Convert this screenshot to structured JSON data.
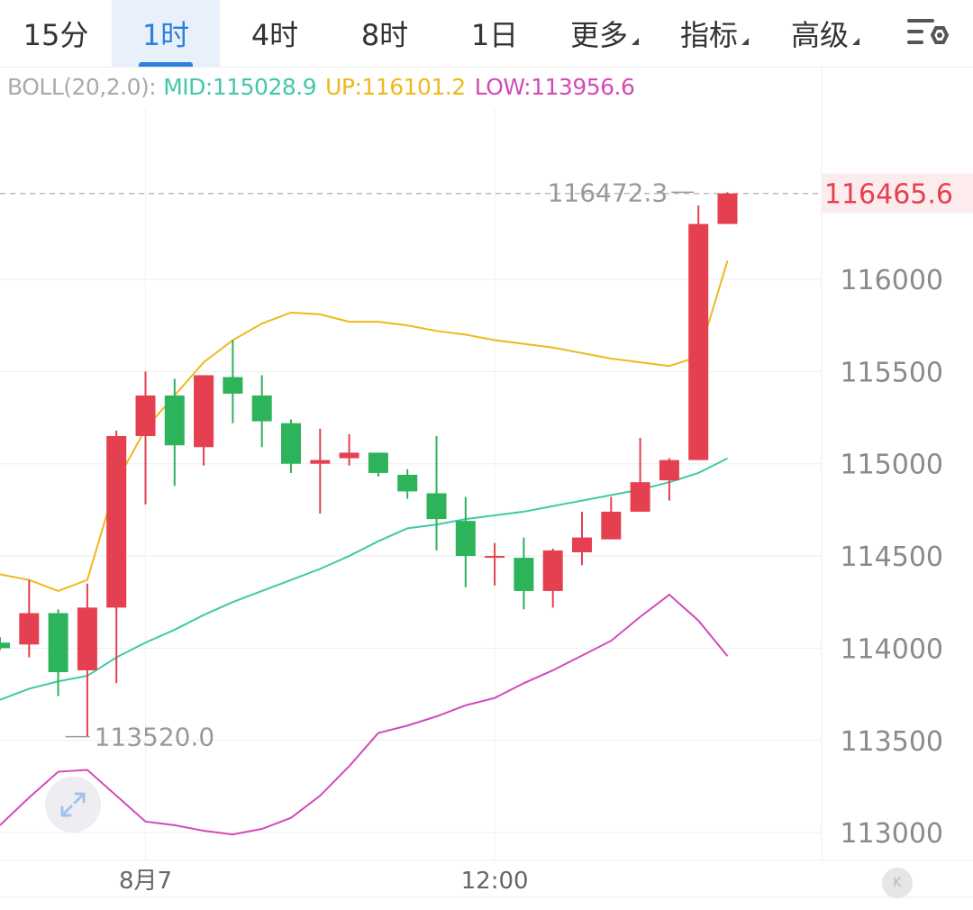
{
  "tabs": [
    {
      "label": "15分",
      "active": false,
      "dropdown": false
    },
    {
      "label": "1时",
      "active": true,
      "dropdown": false
    },
    {
      "label": "4时",
      "active": false,
      "dropdown": false
    },
    {
      "label": "8时",
      "active": false,
      "dropdown": false
    },
    {
      "label": "1日",
      "active": false,
      "dropdown": false
    },
    {
      "label": "更多",
      "active": false,
      "dropdown": true
    },
    {
      "label": "指标",
      "active": false,
      "dropdown": true
    },
    {
      "label": "高级",
      "active": false,
      "dropdown": true
    }
  ],
  "settings_icon": "chart-settings-icon",
  "legend": {
    "name": "BOLL(20,2.0):",
    "mid": "MID:115028.9",
    "up": "UP:116101.2",
    "low": "LOW:113956.6"
  },
  "colors": {
    "up_candle": "#e5404f",
    "down_candle": "#2db35a",
    "mid_line": "#3fc9a8",
    "up_line": "#efb81c",
    "low_line": "#d24ab8",
    "accent": "#2d7fe0",
    "grid": "#eeeeee"
  },
  "chart_data": {
    "type": "candlestick",
    "indicator": "BOLL(20,2.0)",
    "timeframe": "1时",
    "ylim": [
      112900,
      116800
    ],
    "y_ticks": [
      113000,
      113500,
      114000,
      114500,
      115000,
      115500,
      116000
    ],
    "y_tick_labels": [
      "113000",
      "113500",
      "114000",
      "114500",
      "115000",
      "115500",
      "116000"
    ],
    "x_labels": [
      {
        "index": 5,
        "text": "8月7"
      },
      {
        "index": 17,
        "text": "12:00"
      }
    ],
    "current_price": "116465.6",
    "high_marker": {
      "index": 24,
      "label": "116472.3",
      "value": 116472.3
    },
    "low_marker": {
      "index": 2,
      "label": "113520.0",
      "value": 113520.0
    },
    "candles": [
      {
        "o": 114030,
        "h": 114060,
        "l": 113990,
        "c": 114000
      },
      {
        "o": 114020,
        "h": 114370,
        "l": 113950,
        "c": 114190
      },
      {
        "o": 114190,
        "h": 114210,
        "l": 113740,
        "c": 113870
      },
      {
        "o": 113880,
        "h": 114350,
        "l": 113520,
        "c": 114220
      },
      {
        "o": 114220,
        "h": 115180,
        "l": 113810,
        "c": 115150
      },
      {
        "o": 115150,
        "h": 115500,
        "l": 114780,
        "c": 115370
      },
      {
        "o": 115370,
        "h": 115460,
        "l": 114880,
        "c": 115100
      },
      {
        "o": 115090,
        "h": 115480,
        "l": 114990,
        "c": 115480
      },
      {
        "o": 115470,
        "h": 115670,
        "l": 115220,
        "c": 115380
      },
      {
        "o": 115370,
        "h": 115480,
        "l": 115090,
        "c": 115230
      },
      {
        "o": 115220,
        "h": 115240,
        "l": 114950,
        "c": 115000
      },
      {
        "o": 115000,
        "h": 115190,
        "l": 114730,
        "c": 115020
      },
      {
        "o": 115030,
        "h": 115160,
        "l": 114990,
        "c": 115060
      },
      {
        "o": 115060,
        "h": 115060,
        "l": 114930,
        "c": 114950
      },
      {
        "o": 114940,
        "h": 114970,
        "l": 114810,
        "c": 114850
      },
      {
        "o": 114840,
        "h": 115150,
        "l": 114530,
        "c": 114700
      },
      {
        "o": 114690,
        "h": 114820,
        "l": 114330,
        "c": 114500
      },
      {
        "o": 114500,
        "h": 114570,
        "l": 114340,
        "c": 114500
      },
      {
        "o": 114490,
        "h": 114600,
        "l": 114210,
        "c": 114310
      },
      {
        "o": 114310,
        "h": 114540,
        "l": 114220,
        "c": 114530
      },
      {
        "o": 114520,
        "h": 114740,
        "l": 114450,
        "c": 114600
      },
      {
        "o": 114590,
        "h": 114820,
        "l": 114590,
        "c": 114740
      },
      {
        "o": 114740,
        "h": 115140,
        "l": 114740,
        "c": 114900
      },
      {
        "o": 114910,
        "h": 115030,
        "l": 114800,
        "c": 115020
      },
      {
        "o": 115020,
        "h": 116400,
        "l": 115020,
        "c": 116300
      },
      {
        "o": 116300,
        "h": 116472.3,
        "l": 116300,
        "c": 116465.6
      }
    ],
    "series": [
      {
        "name": "MID",
        "values": [
          113720,
          113780,
          113820,
          113850,
          113950,
          114030,
          114100,
          114180,
          114250,
          114310,
          114370,
          114430,
          114500,
          114580,
          114650,
          114670,
          114700,
          114720,
          114740,
          114770,
          114800,
          114830,
          114860,
          114900,
          114950,
          115028.9
        ]
      },
      {
        "name": "UP",
        "values": [
          114400,
          114370,
          114310,
          114370,
          114900,
          115190,
          115370,
          115550,
          115670,
          115760,
          115820,
          115810,
          115770,
          115770,
          115750,
          115720,
          115700,
          115670,
          115650,
          115630,
          115600,
          115570,
          115550,
          115530,
          115580,
          116101.2
        ]
      },
      {
        "name": "LOW",
        "values": [
          113040,
          113190,
          113330,
          113340,
          113200,
          113060,
          113040,
          113010,
          112990,
          113020,
          113080,
          113200,
          113360,
          113540,
          113580,
          113630,
          113690,
          113730,
          113810,
          113880,
          113960,
          114040,
          114170,
          114290,
          114150,
          113956.6
        ]
      }
    ]
  }
}
